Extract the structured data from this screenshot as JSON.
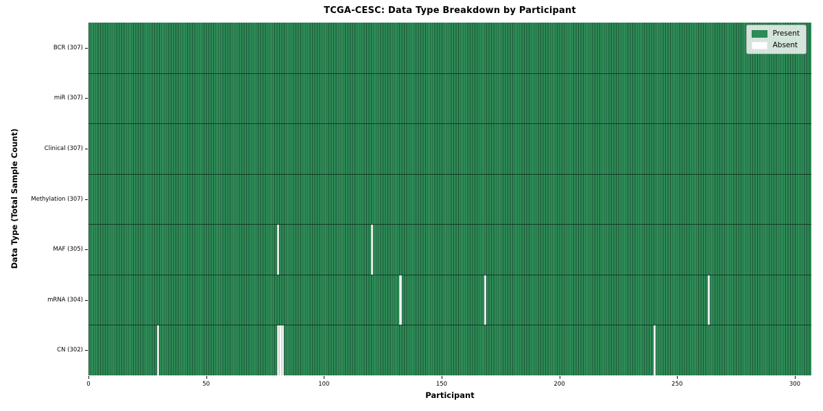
{
  "chart_data": {
    "type": "heatmap",
    "title": "TCGA-CESC: Data Type Breakdown by Participant",
    "xlabel": "Participant",
    "ylabel": "Data Type (Total Sample Count)",
    "n_participants": 307,
    "xlim": [
      0,
      307
    ],
    "x_ticks": [
      0,
      50,
      100,
      150,
      200,
      250,
      300
    ],
    "grid": false,
    "legend_position": "upper-right",
    "legend": {
      "entries": [
        {
          "label": "Present",
          "color": "#2e8b57"
        },
        {
          "label": "Absent",
          "color": "#ffffff"
        }
      ]
    },
    "rows": [
      {
        "label": "BCR (307)",
        "data_type": "BCR",
        "present_count": 307,
        "absent_participants": []
      },
      {
        "label": "miR (307)",
        "data_type": "miR",
        "present_count": 307,
        "absent_participants": []
      },
      {
        "label": "Clinical (307)",
        "data_type": "Clinical",
        "present_count": 307,
        "absent_participants": []
      },
      {
        "label": "Methylation (307)",
        "data_type": "Methylation",
        "present_count": 307,
        "absent_participants": []
      },
      {
        "label": "MAF (305)",
        "data_type": "MAF",
        "present_count": 305,
        "absent_participants": [
          80,
          120
        ]
      },
      {
        "label": "mRNA (304)",
        "data_type": "mRNA",
        "present_count": 304,
        "absent_participants": [
          132,
          168,
          263
        ]
      },
      {
        "label": "CN (302)",
        "data_type": "CN",
        "present_count": 302,
        "absent_participants": [
          29,
          80,
          81,
          82,
          240
        ]
      }
    ]
  }
}
